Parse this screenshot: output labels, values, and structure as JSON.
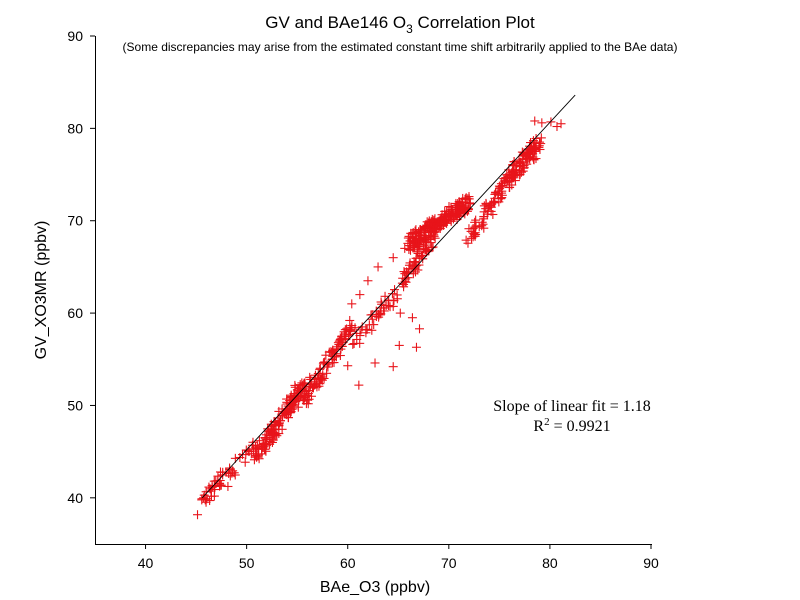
{
  "chart_data": {
    "type": "scatter",
    "title": "GV and BAe146 O3 Correlation Plot",
    "title_parts": {
      "before": "GV and BAe146 O",
      "sub": "3",
      "after": " Correlation Plot"
    },
    "subtitle": "(Some discrepancies may arise from the estimated constant time shift arbitrarily applied to the BAe data)",
    "xlabel": "BAe_O3 (ppbv)",
    "ylabel": "GV_XO3MR (ppbv)",
    "xlim": [
      35,
      90
    ],
    "ylim": [
      35,
      90
    ],
    "xticks": [
      40,
      50,
      60,
      70,
      80,
      90
    ],
    "yticks": [
      40,
      50,
      60,
      70,
      80,
      90
    ],
    "xtick_labels": [
      "40",
      "50",
      "60",
      "70",
      "80",
      "90"
    ],
    "ytick_labels": [
      "40",
      "50",
      "60",
      "70",
      "80",
      "90"
    ],
    "grid": false,
    "marker": "+",
    "marker_color": "#e8141a",
    "fit": {
      "slope": 1.18,
      "r2": 0.9921,
      "x_range": [
        45.6,
        82.5
      ],
      "y_range": [
        40.0,
        83.6
      ]
    },
    "annotation": {
      "slope_text": "Slope of linear fit = 1.18",
      "r2_prefix": "R",
      "r2_sup": "2",
      "r2_suffix": " = 0.9921"
    },
    "segments": [
      {
        "x": [
          45.3,
          47.5
        ],
        "y": [
          38.5,
          42.5
        ],
        "n": 30
      },
      {
        "x": [
          47.5,
          51.0
        ],
        "y": [
          41.5,
          46.0
        ],
        "n": 25
      },
      {
        "x": [
          51.0,
          55.5
        ],
        "y": [
          44.5,
          52.0
        ],
        "n": 150
      },
      {
        "x": [
          55.5,
          60.5
        ],
        "y": [
          50.5,
          58.5
        ],
        "n": 100
      },
      {
        "x": [
          60.5,
          65.0
        ],
        "y": [
          56.5,
          62.5
        ],
        "n": 40
      },
      {
        "x": [
          65.5,
          68.5
        ],
        "y": [
          63.5,
          68.5
        ],
        "n": 60
      },
      {
        "x": [
          66.0,
          72.0
        ],
        "y": [
          67.5,
          72.0
        ],
        "n": 220
      },
      {
        "x": [
          72.0,
          75.5
        ],
        "y": [
          68.0,
          74.0
        ],
        "n": 60
      },
      {
        "x": [
          75.5,
          79.0
        ],
        "y": [
          74.0,
          78.5
        ],
        "n": 110
      }
    ],
    "points": [
      [
        78.5,
        80.8
      ],
      [
        79.2,
        80.6
      ],
      [
        80.1,
        80.7
      ],
      [
        80.7,
        80.2
      ],
      [
        81.1,
        80.5
      ],
      [
        66.8,
        68.0
      ],
      [
        64.5,
        66.0
      ],
      [
        63.0,
        65.0
      ],
      [
        62.0,
        63.5
      ],
      [
        61.2,
        62.0
      ],
      [
        60.4,
        61.0
      ],
      [
        60.2,
        59.2
      ],
      [
        59.8,
        57.5
      ],
      [
        62.3,
        59.8
      ],
      [
        61.8,
        58.2
      ],
      [
        66.4,
        59.5
      ],
      [
        65.1,
        56.5
      ],
      [
        64.5,
        54.2
      ],
      [
        62.7,
        54.6
      ],
      [
        61.1,
        52.2
      ],
      [
        60.0,
        54.3
      ],
      [
        65.2,
        60.0
      ],
      [
        67.1,
        58.3
      ],
      [
        66.8,
        56.3
      ],
      [
        63.3,
        61.2
      ]
    ]
  }
}
